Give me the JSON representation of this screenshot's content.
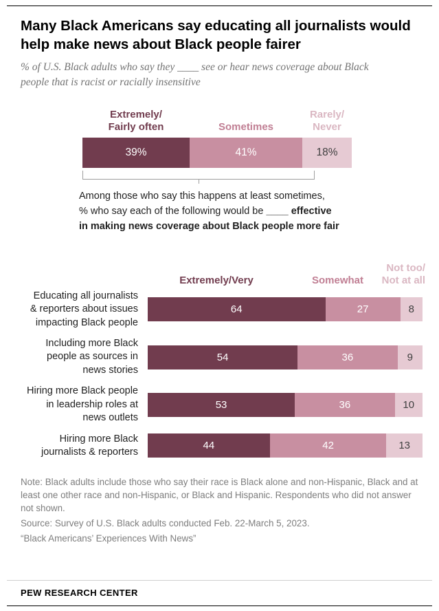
{
  "header": {
    "title": "Many Black Americans say educating all journalists would help make news about Black people fairer",
    "subtitle": "% of U.S. Black adults who say they ____ see or hear news coverage about Black people that is racist or racially insensitive"
  },
  "colors": {
    "dark": "#713C4E",
    "medium": "#C88FA1",
    "light": "#E6CAD3",
    "label_dark": "#713C4E",
    "label_medium": "#C07E93",
    "label_light": "#DAB7C2",
    "value_on_light": "#404040"
  },
  "bridge": {
    "line1": "Among those who say this happens at least sometimes,",
    "line2_normal": "% who say each of the following would be ",
    "line2_bold": "____ effective",
    "line3_bold": "in making news coverage about Black people more fair"
  },
  "chart_data": [
    {
      "type": "bar",
      "stacked": true,
      "orientation": "horizontal",
      "title": "% of U.S. Black adults who say they ____ see or hear news coverage about Black people that is racist or racially insensitive",
      "segments": [
        {
          "label": "Extremely/\nFairly often",
          "value": 39,
          "display": "39%"
        },
        {
          "label": "Sometimes",
          "value": 41,
          "display": "41%"
        },
        {
          "label": "Rarely/\nNever",
          "value": 18,
          "display": "18%"
        }
      ],
      "xlim": [
        0,
        100
      ]
    },
    {
      "type": "bar",
      "stacked": true,
      "orientation": "horizontal",
      "title": "Among those who say this happens at least sometimes, % who say each of the following would be ____ effective in making news coverage about Black people more fair",
      "legend": [
        "Extremely/Very",
        "Somewhat",
        "Not too/\nNot at all"
      ],
      "categories": [
        "Educating all journalists\n& reporters about issues\nimpacting Black people",
        "Including more Black\npeople as sources in\nnews stories",
        "Hiring more Black people\nin leadership roles at\nnews outlets",
        "Hiring more Black\njournalists & reporters"
      ],
      "series": [
        {
          "name": "Extremely/Very",
          "values": [
            64,
            54,
            53,
            44
          ]
        },
        {
          "name": "Somewhat",
          "values": [
            27,
            36,
            36,
            42
          ]
        },
        {
          "name": "Not too/Not at all",
          "values": [
            8,
            9,
            10,
            13
          ]
        }
      ],
      "xlim": [
        0,
        100
      ]
    }
  ],
  "footer": {
    "note": "Note: Black adults include those who say their race is Black alone and non-Hispanic, Black and at least one other race and non-Hispanic, or Black and Hispanic. Respondents who did not answer not shown.",
    "source": "Source: Survey of U.S. Black adults conducted Feb. 22-March 5, 2023.",
    "quote": "“Black Americans’ Experiences With News”",
    "brand": "PEW RESEARCH CENTER"
  }
}
